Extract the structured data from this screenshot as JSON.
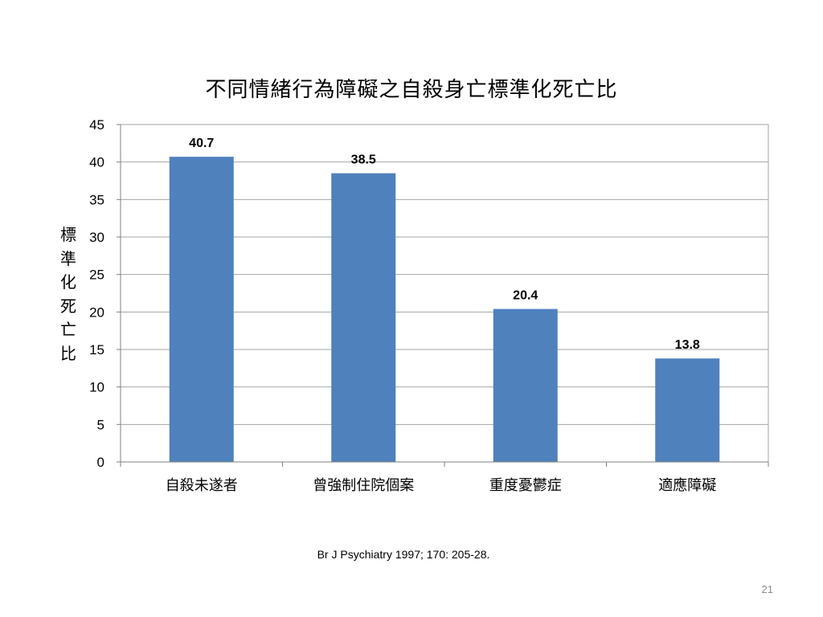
{
  "slide": {
    "title": "不同情緒行為障礙之自殺身亡標準化死亡比",
    "citation": "Br J Psychiatry 1997; 170: 205-28.",
    "page_number": "21"
  },
  "chart_data": {
    "type": "bar",
    "title": "不同情緒行為障礙之自殺身亡標準化死亡比",
    "categories": [
      "自殺未遂者",
      "曾強制住院個案",
      "重度憂鬱症",
      "適應障礙"
    ],
    "values": [
      40.7,
      38.5,
      20.4,
      13.8
    ],
    "data_labels": [
      "40.7",
      "38.5",
      "20.4",
      "13.8"
    ],
    "xlabel": "",
    "ylabel": "標準化死亡比",
    "ylim": [
      0,
      45
    ],
    "yticks": [
      0,
      5,
      10,
      15,
      20,
      25,
      30,
      35,
      40,
      45
    ],
    "grid": true,
    "legend": "none",
    "bar_color": "#4F81BD"
  }
}
